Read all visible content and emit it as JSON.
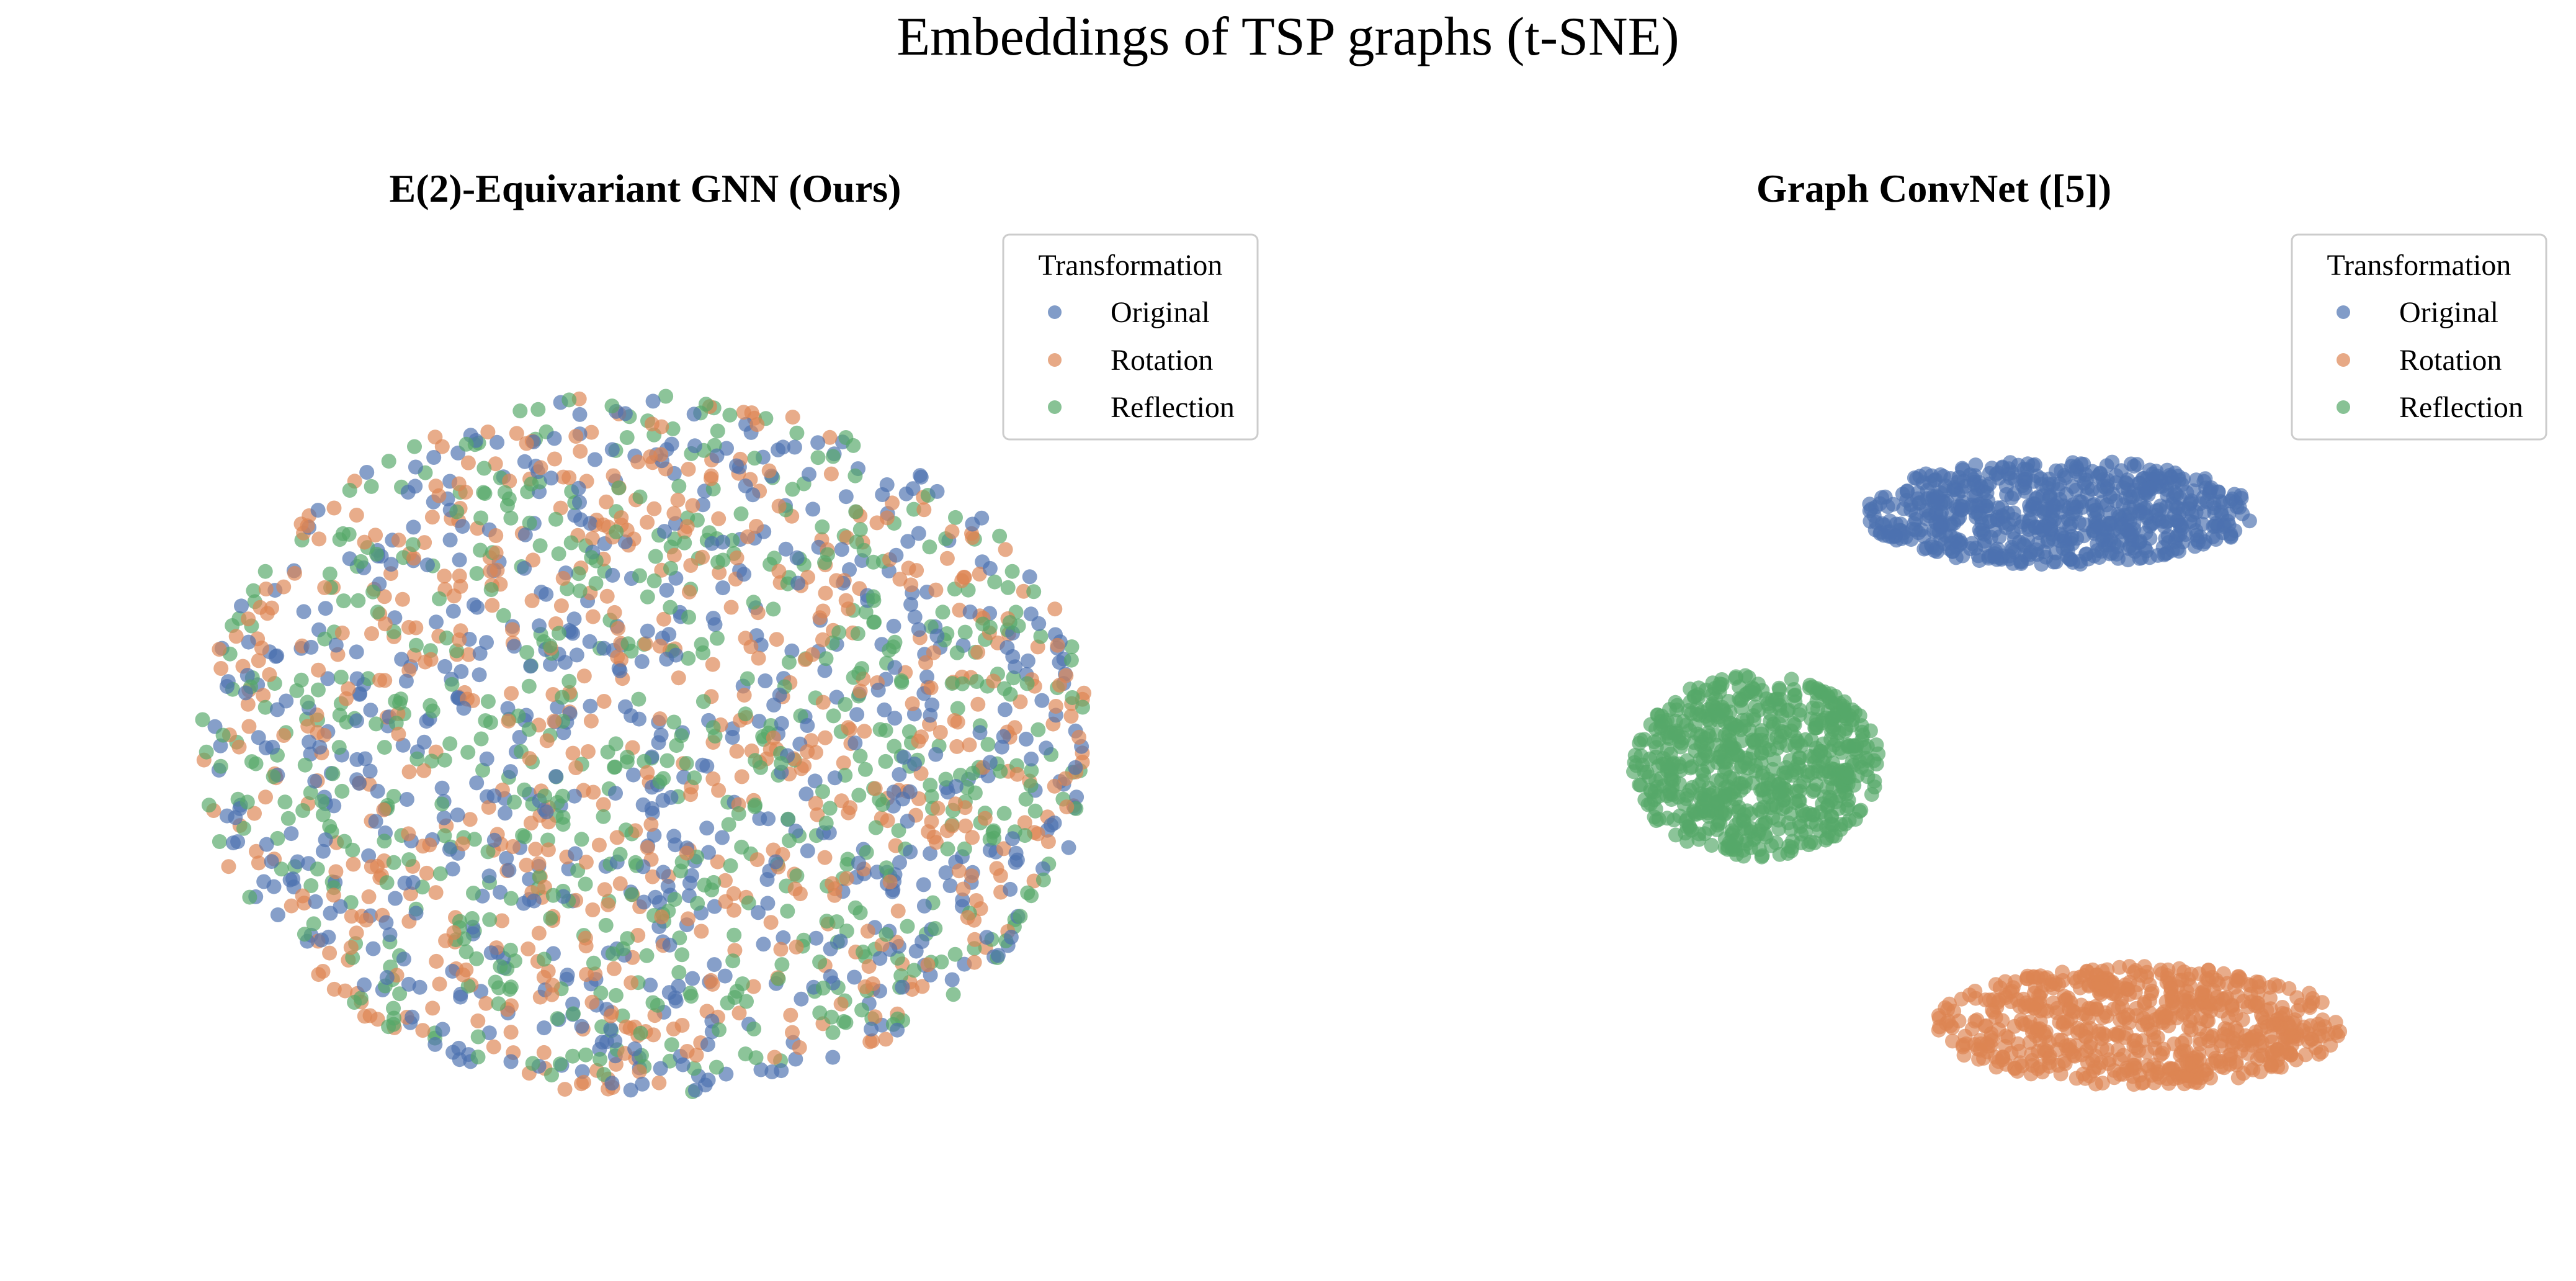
{
  "figure": {
    "title": "Embeddings of TSP graphs (t-SNE)"
  },
  "colors": {
    "original": "#4c72b0",
    "rotation": "#dd8452",
    "reflection": "#55a868"
  },
  "chart_data": [
    {
      "type": "scatter",
      "title": "E(2)-Equivariant GNN (Ours)",
      "xlabel": "",
      "ylabel": "",
      "axes_visible": false,
      "grid": false,
      "xlim": [
        -60,
        60
      ],
      "ylim": [
        -60,
        60
      ],
      "legend": {
        "title": "Transformation",
        "placement": "top-right",
        "entries": [
          "Original",
          "Rotation",
          "Reflection"
        ]
      },
      "series": [
        {
          "name": "Original",
          "color": "#4c72b0",
          "distribution": "ellipse",
          "center": [
            0,
            0
          ],
          "radius": [
            50,
            50
          ],
          "count": 660
        },
        {
          "name": "Rotation",
          "color": "#dd8452",
          "distribution": "ellipse",
          "center": [
            0,
            0
          ],
          "radius": [
            50,
            50
          ],
          "count": 660
        },
        {
          "name": "Reflection",
          "color": "#55a868",
          "distribution": "ellipse",
          "center": [
            0,
            0
          ],
          "radius": [
            50,
            50
          ],
          "count": 660
        }
      ]
    },
    {
      "type": "scatter",
      "title": "Graph ConvNet ([5])",
      "xlabel": "",
      "ylabel": "",
      "axes_visible": false,
      "grid": false,
      "xlim": [
        -60,
        60
      ],
      "ylim": [
        -60,
        60
      ],
      "legend": {
        "title": "Transformation",
        "placement": "top-right",
        "entries": [
          "Original",
          "Rotation",
          "Reflection"
        ]
      },
      "series": [
        {
          "name": "Original",
          "color": "#4c72b0",
          "distribution": "ellipse",
          "center": [
            14,
            33
          ],
          "radius": [
            22,
            7.5
          ],
          "count": 660
        },
        {
          "name": "Rotation",
          "color": "#dd8452",
          "distribution": "ellipse",
          "center": [
            23,
            -40
          ],
          "radius": [
            23,
            8.5
          ],
          "count": 660
        },
        {
          "name": "Reflection",
          "color": "#55a868",
          "distribution": "ellipse",
          "center": [
            -20,
            -3
          ],
          "radius": [
            14,
            13
          ],
          "count": 660
        }
      ]
    }
  ]
}
